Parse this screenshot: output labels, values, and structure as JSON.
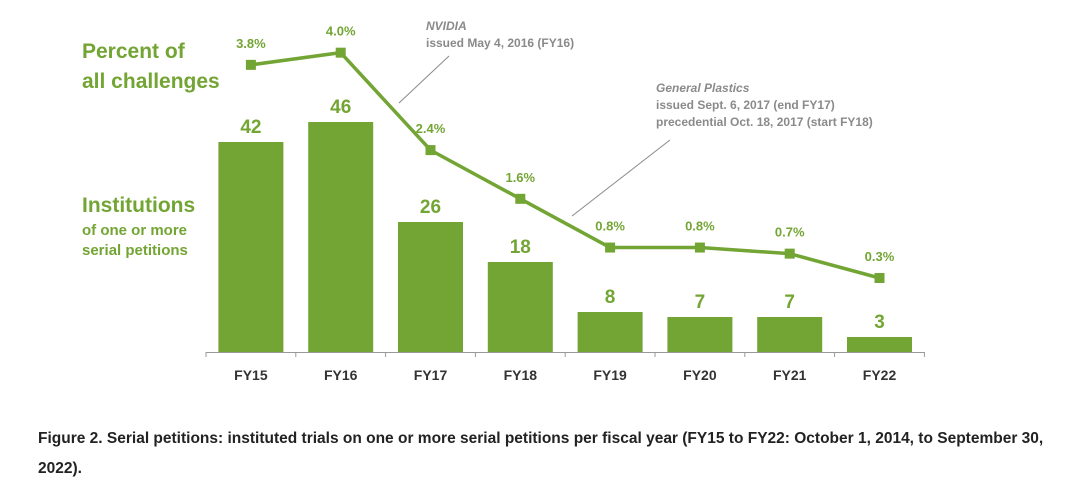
{
  "chart_data": {
    "type": "bar",
    "categories": [
      "FY15",
      "FY16",
      "FY17",
      "FY18",
      "FY19",
      "FY20",
      "FY21",
      "FY22"
    ],
    "series": [
      {
        "name": "Institutions of one or more serial petitions",
        "values": [
          42,
          46,
          26,
          18,
          8,
          7,
          7,
          3
        ]
      },
      {
        "name": "Percent of all challenges",
        "type": "line",
        "values": [
          3.8,
          4.0,
          2.4,
          1.6,
          0.8,
          0.8,
          0.7,
          0.3
        ],
        "labels": [
          "3.8%",
          "4.0%",
          "2.4%",
          "1.6%",
          "0.8%",
          "0.8%",
          "0.7%",
          "0.3%"
        ]
      }
    ],
    "legend": {
      "percent_title": [
        "Percent of",
        "all challenges"
      ],
      "institutions_title": "Institutions",
      "institutions_sub": [
        "of one or more",
        "serial petitions"
      ]
    },
    "annotations": [
      {
        "name": "NVIDIA",
        "lines": [
          "issued May 4, 2016 (FY16)"
        ]
      },
      {
        "name": "General Plastics",
        "lines": [
          "issued Sept. 6, 2017 (end FY17)",
          "precedential Oct. 18, 2017 (start FY18)"
        ]
      }
    ],
    "colors": {
      "bar": "#73a534",
      "line": "#73a534",
      "text": "#73a534",
      "annotation": "#8a8a8a",
      "axis": "#999999"
    }
  },
  "caption": "Figure 2. Serial petitions: instituted trials on one or more serial petitions per fiscal year (FY15 to FY22: October 1, 2014, to September 30, 2022)."
}
